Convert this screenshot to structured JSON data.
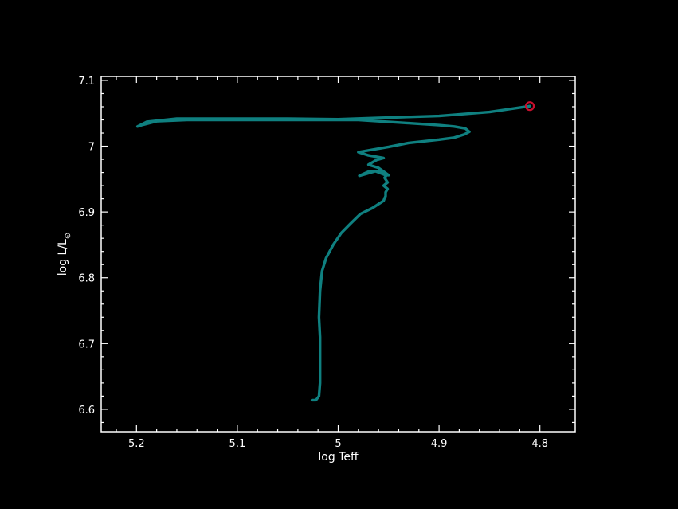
{
  "chart_data": {
    "type": "line",
    "xlabel": "log Teff",
    "ylabel_main": "log L/L",
    "ylabel_sub": "⊙",
    "xlim": [
      5.235,
      4.765
    ],
    "ylim": [
      6.566,
      7.106
    ],
    "x_reversed": true,
    "x_ticks": [
      5.2,
      5.1,
      5.0,
      4.9,
      4.8
    ],
    "x_tick_labels": [
      "5.2",
      "5.1",
      "5",
      "4.9",
      "4.8"
    ],
    "y_ticks": [
      6.6,
      6.7,
      6.8,
      6.9,
      7.0,
      7.1
    ],
    "y_tick_labels": [
      "6.6",
      "6.7",
      "6.8",
      "6.9",
      "7",
      "7.1"
    ],
    "grid": false,
    "colors": {
      "background": "#000000",
      "axes": "#ffffff",
      "track": "#0f8080",
      "marker": "#c8102e"
    },
    "series": [
      {
        "x": [
          5.026,
          5.022,
          5.019,
          5.018,
          5.018,
          5.018,
          5.019,
          5.018,
          5.016,
          5.012,
          5.005,
          4.997,
          4.988,
          4.978,
          4.966,
          4.96,
          4.955,
          4.954,
          4.953,
          4.953,
          4.951,
          4.955,
          4.951,
          4.954,
          4.952,
          4.955,
          4.961,
          4.969,
          4.979,
          4.972,
          4.963,
          4.953,
          4.95,
          4.96,
          4.97,
          4.962,
          4.955,
          4.97,
          4.98,
          4.95,
          4.93,
          4.9,
          4.885,
          4.875,
          4.87,
          4.874,
          4.885,
          4.9,
          4.93,
          4.96,
          4.98,
          4.99,
          5.01,
          5.05,
          5.1,
          5.15,
          5.18,
          5.195,
          5.199,
          5.19,
          5.16,
          5.1,
          5.05,
          5.0,
          4.96,
          4.9,
          4.85,
          4.81
        ],
        "y": [
          6.614,
          6.614,
          6.62,
          6.64,
          6.68,
          6.71,
          6.74,
          6.78,
          6.81,
          6.83,
          6.85,
          6.868,
          6.882,
          6.897,
          6.906,
          6.912,
          6.917,
          6.921,
          6.924,
          6.93,
          6.935,
          6.94,
          6.945,
          6.952,
          6.956,
          6.96,
          6.962,
          6.962,
          6.955,
          6.958,
          6.962,
          6.956,
          6.956,
          6.967,
          6.972,
          6.979,
          6.982,
          6.986,
          6.991,
          6.999,
          7.005,
          7.01,
          7.013,
          7.018,
          7.022,
          7.027,
          7.03,
          7.032,
          7.035,
          7.038,
          7.04,
          7.04,
          7.04,
          7.04,
          7.04,
          7.04,
          7.038,
          7.032,
          7.03,
          7.037,
          7.042,
          7.042,
          7.042,
          7.041,
          7.043,
          7.046,
          7.052,
          7.061
        ]
      }
    ],
    "end_marker": {
      "x": 4.81,
      "y": 7.061
    }
  }
}
